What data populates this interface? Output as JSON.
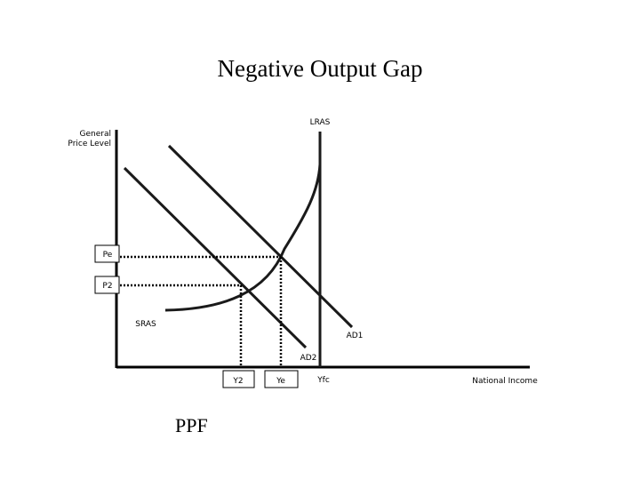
{
  "title": "Negative Output Gap",
  "footer": "PPF",
  "y_axis_label": [
    "General",
    "Price Level"
  ],
  "x_axis_label": "National Income",
  "curves": {
    "lras": "LRAS",
    "sras": "SRAS",
    "ad1": "AD1",
    "ad2": "AD2"
  },
  "price_levels": [
    "Pe",
    "P2"
  ],
  "income_levels": [
    "Y2",
    "Ye",
    "Yfc"
  ]
}
